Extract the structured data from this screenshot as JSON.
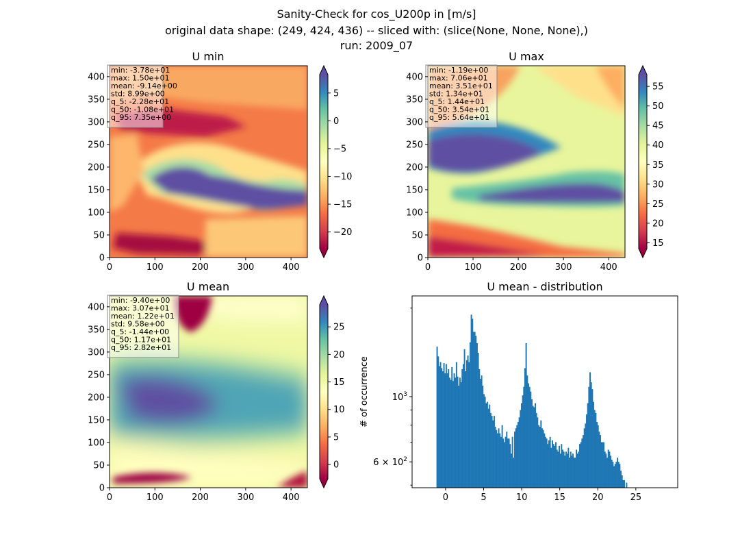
{
  "header": {
    "line1": "Sanity-Check for cos_U200p in [m/s]",
    "line2": "original data shape: (249, 424, 436) -- sliced with: (slice(None, None, None),)",
    "line3": "run: 2009_07"
  },
  "colors": {
    "spectral": [
      "#9e0142",
      "#d53e4f",
      "#f46d43",
      "#fdae61",
      "#fee08b",
      "#ffffbf",
      "#e6f598",
      "#abdda4",
      "#66c2a5",
      "#3288bd",
      "#5e4fa2"
    ],
    "histogram": "#1f77b4"
  },
  "chart_data": [
    {
      "type": "heatmap",
      "title": "U min",
      "x_ticks": [
        "0",
        "100",
        "200",
        "300",
        "400"
      ],
      "y_ticks": [
        "0",
        "50",
        "100",
        "150",
        "200",
        "250",
        "300",
        "350",
        "400"
      ],
      "xlim": [
        0,
        436
      ],
      "ylim": [
        0,
        424
      ],
      "colorbar": {
        "vmin": -23,
        "vmax": 8.3,
        "ticks": [
          "−20",
          "−15",
          "−10",
          "−5",
          "0",
          "5"
        ],
        "tick_values": [
          -20,
          -15,
          -10,
          -5,
          0,
          5
        ],
        "extend": "both"
      },
      "stats": [
        "min: -3.78e+01",
        "max: 1.50e+01",
        "mean: -9.14e+00",
        "std: 8.99e+00",
        "q_5: -2.28e+01",
        "q_50: -1.08e+01",
        "q_95: 7.35e+00"
      ]
    },
    {
      "type": "heatmap",
      "title": "U max",
      "x_ticks": [
        "0",
        "100",
        "200",
        "300",
        "400"
      ],
      "y_ticks": [
        "0",
        "50",
        "100",
        "150",
        "200",
        "250",
        "300",
        "350",
        "400"
      ],
      "xlim": [
        0,
        436
      ],
      "ylim": [
        0,
        424
      ],
      "colorbar": {
        "vmin": 13.5,
        "vmax": 58,
        "ticks": [
          "15",
          "20",
          "25",
          "30",
          "35",
          "40",
          "45",
          "50",
          "55"
        ],
        "tick_values": [
          15,
          20,
          25,
          30,
          35,
          40,
          45,
          50,
          55
        ],
        "extend": "both"
      },
      "stats": [
        "min: -1.19e+00",
        "max: 7.06e+01",
        "mean: 3.51e+01",
        "std: 1.34e+01",
        "q_5: 1.44e+01",
        "q_50: 3.54e+01",
        "q_95: 5.64e+01"
      ]
    },
    {
      "type": "heatmap",
      "title": "U mean",
      "x_ticks": [
        "0",
        "100",
        "200",
        "300",
        "400"
      ],
      "y_ticks": [
        "0",
        "50",
        "100",
        "150",
        "200",
        "250",
        "300",
        "350",
        "400"
      ],
      "xlim": [
        0,
        436
      ],
      "ylim": [
        0,
        424
      ],
      "colorbar": {
        "vmin": -2.6,
        "vmax": 29,
        "ticks": [
          "0",
          "5",
          "10",
          "15",
          "20",
          "25"
        ],
        "tick_values": [
          0,
          5,
          10,
          15,
          20,
          25
        ],
        "extend": "both"
      },
      "stats": [
        "min: -9.40e+00",
        "max: 3.07e+01",
        "mean: 1.22e+01",
        "std: 9.58e+00",
        "q_5: -1.44e+00",
        "q_50: 1.17e+01",
        "q_95: 2.82e+01"
      ]
    },
    {
      "type": "bar",
      "title": "U mean - distribution",
      "ylabel": "# of occurrence",
      "xlim": [
        -4.4,
        30.5
      ],
      "x_ticks": [
        0,
        5,
        10,
        15,
        20,
        25
      ],
      "y_scale": "log",
      "ylim": [
        490,
        2200
      ],
      "y_major_ticks": [
        {
          "value": 1000,
          "base": "10",
          "exp": "3"
        },
        {
          "value": 600,
          "base": "6 × 10",
          "exp": "2"
        }
      ],
      "y_minor_ticks": [
        500,
        700,
        800,
        900,
        2000
      ],
      "bin_start": -1.2,
      "bin_width": 0.15,
      "values": [
        1480,
        1370,
        1270,
        1310,
        1250,
        1220,
        1300,
        1200,
        1290,
        1200,
        1240,
        1160,
        1140,
        1260,
        1130,
        1200,
        1160,
        1310,
        1170,
        1090,
        1160,
        1120,
        1240,
        1290,
        1450,
        1220,
        1330,
        1380,
        1310,
        1530,
        1900,
        1840,
        1660,
        1660,
        1610,
        1520,
        1410,
        1240,
        1150,
        1180,
        1090,
        1020,
        1000,
        950,
        960,
        910,
        940,
        880,
        860,
        830,
        860,
        790,
        770,
        750,
        780,
        750,
        730,
        800,
        720,
        700,
        730,
        760,
        720,
        720,
        690,
        640,
        730,
        620,
        760,
        780,
        800,
        820,
        850,
        900,
        950,
        1010,
        1080,
        1250,
        1520,
        1180,
        1110,
        1080,
        1040,
        980,
        930,
        920,
        950,
        880,
        850,
        800,
        790,
        830,
        780,
        770,
        750,
        730,
        720,
        690,
        710,
        730,
        670,
        710,
        690,
        680,
        700,
        660,
        650,
        680,
        640,
        690,
        660,
        650,
        630,
        650,
        640,
        670,
        620,
        650,
        630,
        640,
        620,
        620,
        660,
        640,
        650,
        690,
        700,
        720,
        740,
        780,
        810,
        870,
        950,
        1080,
        1210,
        1120,
        1060,
        960,
        900,
        880,
        820,
        800,
        760,
        740,
        700,
        700,
        700,
        650,
        640,
        620,
        660,
        650,
        630,
        610,
        600,
        580,
        590,
        600,
        620,
        600,
        590,
        560,
        540,
        520,
        520,
        490,
        510
      ]
    }
  ]
}
